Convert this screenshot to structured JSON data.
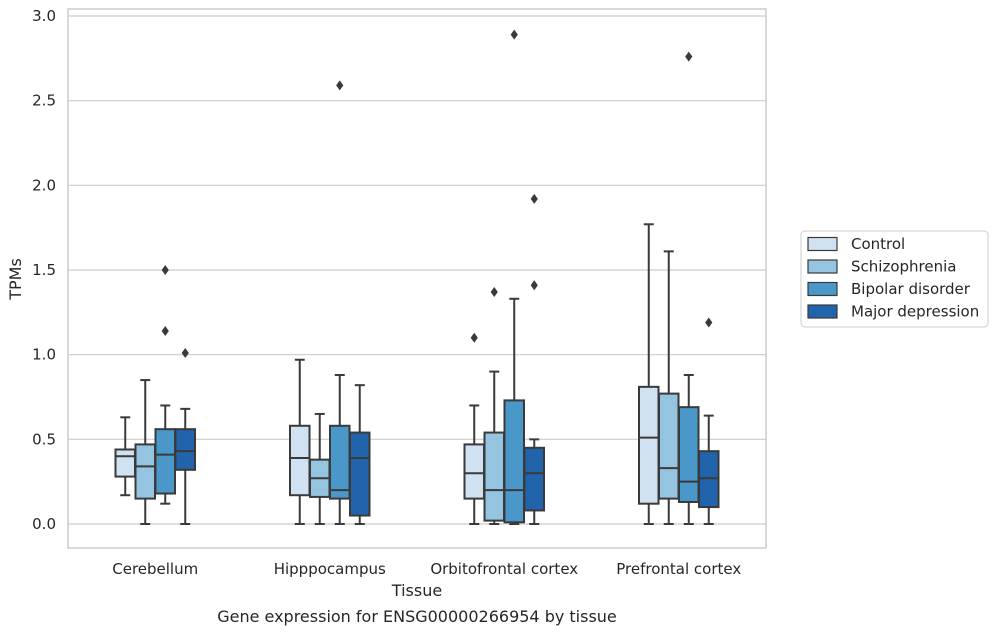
{
  "chart_data": {
    "type": "boxplot",
    "xlabel": "Tissue",
    "ylabel": "TPMs",
    "caption": "Gene expression for ENSG00000266954 by tissue",
    "ylim": [
      -0.14,
      3.04
    ],
    "yticks": [
      "0.0",
      "0.5",
      "1.0",
      "1.5",
      "2.0",
      "2.5",
      "3.0"
    ],
    "grid": "horizontal",
    "legend_position": "right",
    "categories": [
      "Cerebellum",
      "Hipppocampus",
      "Orbitofrontal cortex",
      "Prefrontal cortex"
    ],
    "series": [
      {
        "name": "Control",
        "color": "#d0e1f2",
        "boxes": [
          {
            "whisker_low": 0.17,
            "q1": 0.28,
            "median": 0.4,
            "q3": 0.44,
            "whisker_high": 0.63,
            "outliers": []
          },
          {
            "whisker_low": 0.0,
            "q1": 0.17,
            "median": 0.39,
            "q3": 0.58,
            "whisker_high": 0.97,
            "outliers": []
          },
          {
            "whisker_low": 0.0,
            "q1": 0.15,
            "median": 0.3,
            "q3": 0.47,
            "whisker_high": 0.7,
            "outliers": [
              1.1
            ]
          },
          {
            "whisker_low": 0.0,
            "q1": 0.12,
            "median": 0.51,
            "q3": 0.81,
            "whisker_high": 1.77,
            "outliers": []
          }
        ]
      },
      {
        "name": "Schizophrenia",
        "color": "#94c4df",
        "boxes": [
          {
            "whisker_low": 0.0,
            "q1": 0.15,
            "median": 0.34,
            "q3": 0.47,
            "whisker_high": 0.85,
            "outliers": []
          },
          {
            "whisker_low": 0.0,
            "q1": 0.16,
            "median": 0.27,
            "q3": 0.38,
            "whisker_high": 0.65,
            "outliers": []
          },
          {
            "whisker_low": 0.0,
            "q1": 0.02,
            "median": 0.2,
            "q3": 0.54,
            "whisker_high": 0.9,
            "outliers": [
              1.37
            ]
          },
          {
            "whisker_low": 0.0,
            "q1": 0.15,
            "median": 0.33,
            "q3": 0.77,
            "whisker_high": 1.61,
            "outliers": []
          }
        ]
      },
      {
        "name": "Bipolar disorder",
        "color": "#4a98c9",
        "boxes": [
          {
            "whisker_low": 0.12,
            "q1": 0.18,
            "median": 0.41,
            "q3": 0.56,
            "whisker_high": 0.7,
            "outliers": [
              1.14,
              1.5
            ]
          },
          {
            "whisker_low": 0.0,
            "q1": 0.15,
            "median": 0.2,
            "q3": 0.58,
            "whisker_high": 0.88,
            "outliers": [
              2.59
            ]
          },
          {
            "whisker_low": 0.0,
            "q1": 0.01,
            "median": 0.2,
            "q3": 0.73,
            "whisker_high": 1.33,
            "outliers": [
              2.89
            ]
          },
          {
            "whisker_low": 0.0,
            "q1": 0.13,
            "median": 0.25,
            "q3": 0.69,
            "whisker_high": 0.88,
            "outliers": [
              2.76
            ]
          }
        ]
      },
      {
        "name": "Major depression",
        "color": "#2164ab",
        "boxes": [
          {
            "whisker_low": 0.0,
            "q1": 0.32,
            "median": 0.43,
            "q3": 0.56,
            "whisker_high": 0.68,
            "outliers": [
              1.01
            ]
          },
          {
            "whisker_low": 0.0,
            "q1": 0.05,
            "median": 0.39,
            "q3": 0.54,
            "whisker_high": 0.82,
            "outliers": []
          },
          {
            "whisker_low": 0.0,
            "q1": 0.08,
            "median": 0.3,
            "q3": 0.45,
            "whisker_high": 0.5,
            "outliers": [
              1.41,
              1.92
            ]
          },
          {
            "whisker_low": 0.0,
            "q1": 0.1,
            "median": 0.27,
            "q3": 0.43,
            "whisker_high": 0.64,
            "outliers": [
              1.19
            ]
          }
        ]
      }
    ]
  }
}
